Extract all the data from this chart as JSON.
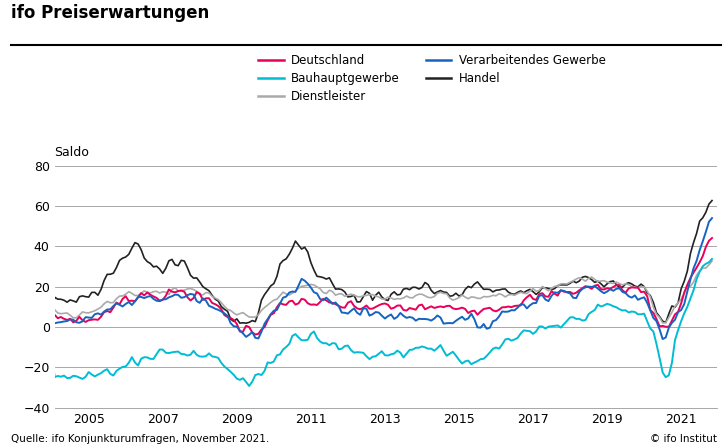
{
  "title": "ifo Preiserwartungen",
  "ylabel": "Saldo",
  "xlabel_source": "Quelle: ifo Konjunkturumfragen, November 2021.",
  "xlabel_copyright": "© ifo Institut",
  "ylim": [
    -40,
    80
  ],
  "yticks": [
    -40,
    -20,
    0,
    20,
    40,
    60,
    80
  ],
  "xlim_start": 2004.08,
  "xlim_end": 2021.97,
  "xtick_years": [
    2005,
    2007,
    2009,
    2011,
    2013,
    2015,
    2017,
    2019,
    2021
  ],
  "colors": {
    "Deutschland": "#e8005a",
    "Verarbeitendes Gewerbe": "#1565c0",
    "Bauhauptgewerbe": "#00bcd4",
    "Handel": "#222222",
    "Dienstleister": "#aaaaaa"
  },
  "background_color": "#ffffff",
  "grid_color": "#999999",
  "title_fontsize": 12,
  "label_fontsize": 9,
  "legend_fontsize": 8.5,
  "tick_fontsize": 9
}
